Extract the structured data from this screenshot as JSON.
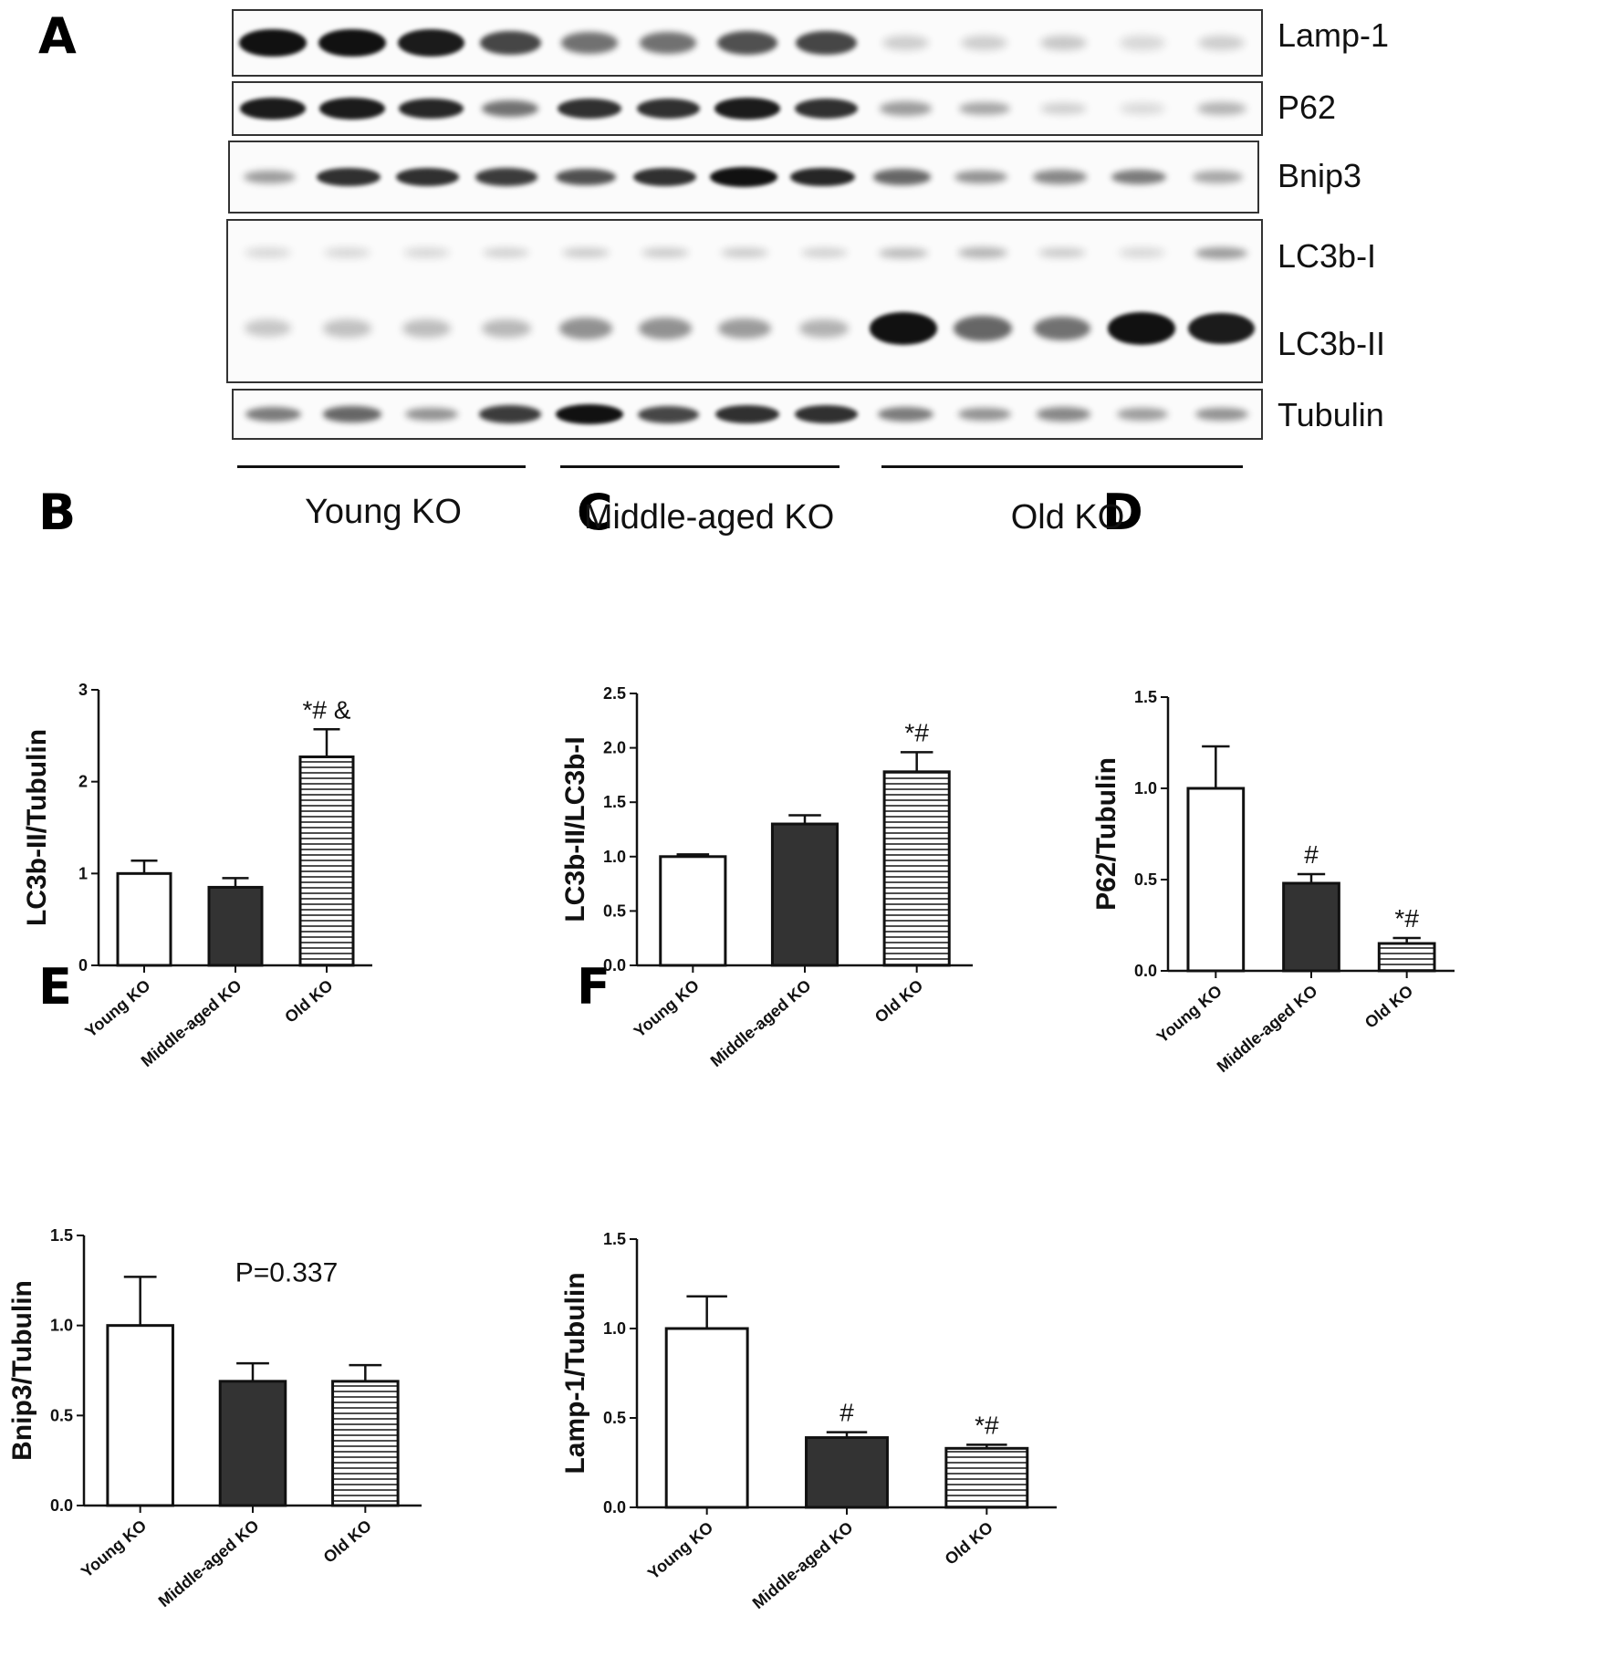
{
  "panels": {
    "a": "A",
    "b": "B",
    "c": "C",
    "d": "D",
    "e": "E",
    "f": "F"
  },
  "blot": {
    "rows": [
      {
        "label": "Lamp-1",
        "intensity": [
          1.0,
          1.0,
          0.95,
          0.75,
          0.55,
          0.55,
          0.7,
          0.75,
          0.12,
          0.12,
          0.15,
          0.08,
          0.12
        ]
      },
      {
        "label": "P62",
        "intensity": [
          0.95,
          0.95,
          0.9,
          0.55,
          0.85,
          0.85,
          0.95,
          0.85,
          0.35,
          0.3,
          0.12,
          0.08,
          0.25
        ]
      },
      {
        "label": "Bnip3",
        "intensity": [
          0.35,
          0.85,
          0.85,
          0.8,
          0.7,
          0.85,
          1.0,
          0.9,
          0.6,
          0.4,
          0.45,
          0.5,
          0.3
        ]
      },
      {
        "label": "LC3b-I",
        "intensity": [
          0.1,
          0.1,
          0.1,
          0.12,
          0.15,
          0.15,
          0.15,
          0.12,
          0.22,
          0.25,
          0.15,
          0.1,
          0.35
        ]
      },
      {
        "label": "LC3b-II",
        "intensity": [
          0.15,
          0.18,
          0.2,
          0.22,
          0.4,
          0.4,
          0.35,
          0.25,
          1.0,
          0.6,
          0.55,
          1.0,
          0.95
        ]
      },
      {
        "label": "Tubulin",
        "intensity": [
          0.5,
          0.6,
          0.4,
          0.8,
          1.0,
          0.75,
          0.85,
          0.85,
          0.5,
          0.4,
          0.45,
          0.35,
          0.4
        ]
      }
    ],
    "groups": [
      "Young KO",
      "Middle-aged KO",
      "Old KO"
    ]
  },
  "chart_data": [
    {
      "panel": "B",
      "type": "bar",
      "categories": [
        "Young KO",
        "Middle-aged KO",
        "Old KO"
      ],
      "values": [
        1.0,
        0.85,
        2.27
      ],
      "errors": [
        0.14,
        0.1,
        0.3
      ],
      "annotations": [
        "",
        "",
        "*# &"
      ],
      "ylabel": "LC3b-II/Tubulin",
      "ylim": [
        0,
        3
      ],
      "yticks": [
        "0",
        "1",
        "2",
        "3"
      ],
      "ytick_values": [
        0,
        1,
        2,
        3
      ]
    },
    {
      "panel": "C",
      "type": "bar",
      "categories": [
        "Young KO",
        "Middle-aged KO",
        "Old KO"
      ],
      "values": [
        1.0,
        1.3,
        1.78
      ],
      "errors": [
        0.02,
        0.08,
        0.18
      ],
      "annotations": [
        "",
        "",
        "*#"
      ],
      "ylabel": "LC3b-II/LC3b-I",
      "ylim": [
        0,
        2.5
      ],
      "yticks": [
        "0.0",
        "0.5",
        "1.0",
        "1.5",
        "2.0",
        "2.5"
      ],
      "ytick_values": [
        0,
        0.5,
        1.0,
        1.5,
        2.0,
        2.5
      ]
    },
    {
      "panel": "D",
      "type": "bar",
      "categories": [
        "Young KO",
        "Middle-aged KO",
        "Old KO"
      ],
      "values": [
        1.0,
        0.48,
        0.15
      ],
      "errors": [
        0.23,
        0.05,
        0.03
      ],
      "annotations": [
        "",
        "#",
        "*#"
      ],
      "ylabel": "P62/Tubulin",
      "ylim": [
        0,
        1.5
      ],
      "yticks": [
        "0.0",
        "0.5",
        "1.0",
        "1.5"
      ],
      "ytick_values": [
        0,
        0.5,
        1.0,
        1.5
      ]
    },
    {
      "panel": "E",
      "type": "bar",
      "categories": [
        "Young KO",
        "Middle-aged KO",
        "Old KO"
      ],
      "values": [
        1.0,
        0.69,
        0.69
      ],
      "errors": [
        0.27,
        0.1,
        0.09
      ],
      "annotations": [
        "",
        "",
        ""
      ],
      "note": "P=0.337",
      "ylabel": "Bnip3/Tubulin",
      "ylim": [
        0,
        1.5
      ],
      "yticks": [
        "0.0",
        "0.5",
        "1.0",
        "1.5"
      ],
      "ytick_values": [
        0,
        0.5,
        1.0,
        1.5
      ]
    },
    {
      "panel": "F",
      "type": "bar",
      "categories": [
        "Young KO",
        "Middle-aged KO",
        "Old KO"
      ],
      "values": [
        1.0,
        0.39,
        0.33
      ],
      "errors": [
        0.18,
        0.03,
        0.02
      ],
      "annotations": [
        "",
        "#",
        "*#"
      ],
      "ylabel": "Lamp-1/Tubulin",
      "ylim": [
        0,
        1.5
      ],
      "yticks": [
        "0.0",
        "0.5",
        "1.0",
        "1.5"
      ],
      "ytick_values": [
        0,
        0.5,
        1.0,
        1.5
      ]
    }
  ],
  "style": {
    "bar_fills": [
      "#ffffff",
      "#333333",
      "hatch"
    ],
    "stroke": "#111111"
  }
}
